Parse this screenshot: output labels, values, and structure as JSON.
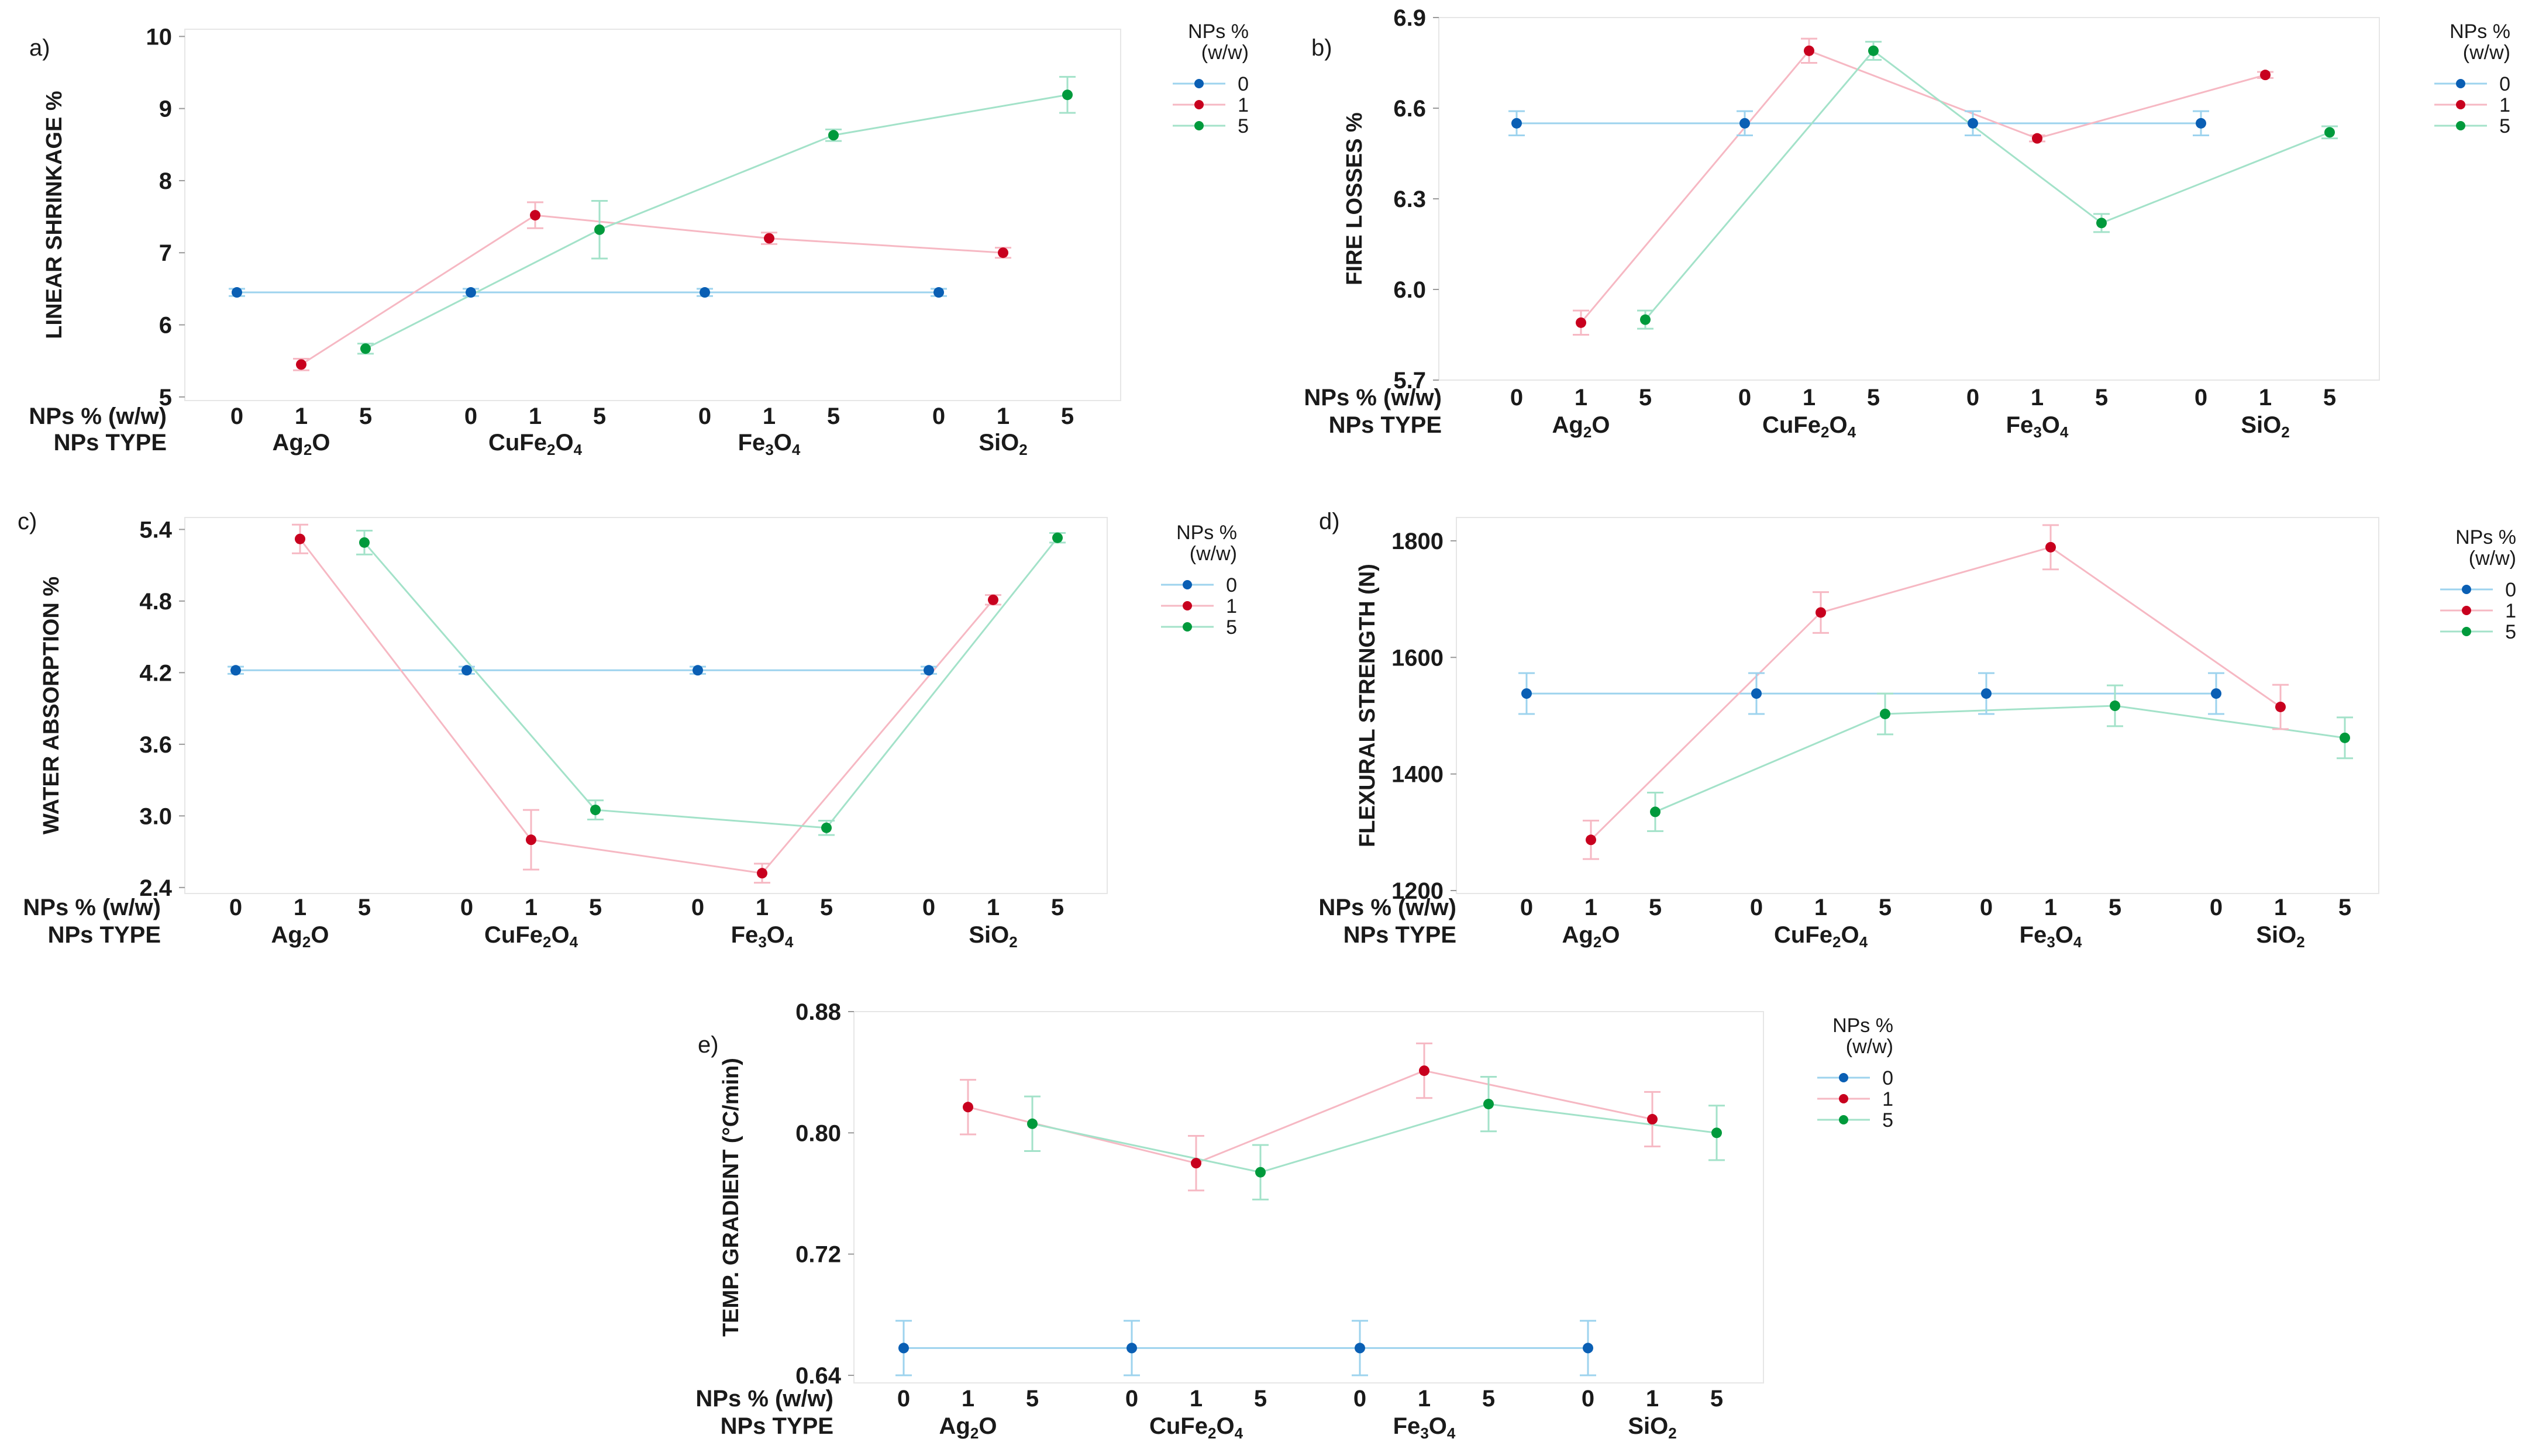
{
  "figure": {
    "nps_row_label": "NPs % (w/w)",
    "type_row_label": "NPs TYPE",
    "legend_title_line1": "NPs %",
    "legend_title_line2": "(w/w)",
    "series_colors": {
      "0": "#0a5fb4",
      "1": "#c8001e",
      "5": "#009a3c"
    },
    "line_colors": {
      "0": "#9dd3ee",
      "1": "#f6b8c3",
      "5": "#a3e2c9"
    },
    "nps_types": [
      {
        "base": "Ag",
        "sub1": "2",
        "mid": "O",
        "sub2": ""
      },
      {
        "base": "CuFe",
        "sub1": "2",
        "mid": "O",
        "sub2": "4"
      },
      {
        "base": "Fe",
        "sub1": "3",
        "mid": "O",
        "sub2": "4"
      },
      {
        "base": "SiO",
        "sub1": "2",
        "mid": "",
        "sub2": ""
      }
    ],
    "nps_levels": [
      "0",
      "1",
      "5"
    ]
  },
  "chart_data": [
    {
      "panel": "a)",
      "type": "line",
      "title": "",
      "ylabel": "LINEAR SHRINKAGE %",
      "ylim": [
        4.95,
        10.1
      ],
      "yticks": [
        5,
        6,
        7,
        8,
        9,
        10
      ],
      "categories": [
        "Ag2O",
        "CuFe2O4",
        "Fe3O4",
        "SiO2"
      ],
      "series": [
        {
          "name": "0",
          "values": [
            6.45,
            6.45,
            6.45,
            6.45
          ],
          "errors": [
            0.05,
            0.05,
            0.05,
            0.05
          ]
        },
        {
          "name": "1",
          "values": [
            5.45,
            7.52,
            7.2,
            7.0
          ],
          "errors": [
            0.08,
            0.18,
            0.08,
            0.07
          ]
        },
        {
          "name": "5",
          "values": [
            5.67,
            7.32,
            8.63,
            9.19
          ],
          "errors": [
            0.07,
            0.4,
            0.08,
            0.25
          ]
        }
      ]
    },
    {
      "panel": "b)",
      "type": "line",
      "title": "",
      "ylabel": "FIRE LOSSES %",
      "ylim": [
        5.7,
        6.9
      ],
      "yticks": [
        "5.7",
        "6.0",
        "6.3",
        "6.6",
        "6.9"
      ],
      "categories": [
        "Ag2O",
        "CuFe2O4",
        "Fe3O4",
        "SiO2"
      ],
      "series": [
        {
          "name": "0",
          "values": [
            6.55,
            6.55,
            6.55,
            6.55
          ],
          "errors": [
            0.04,
            0.04,
            0.04,
            0.04
          ]
        },
        {
          "name": "1",
          "values": [
            5.89,
            6.79,
            6.5,
            6.71
          ],
          "errors": [
            0.04,
            0.04,
            0.01,
            0.01
          ]
        },
        {
          "name": "5",
          "values": [
            5.9,
            6.79,
            6.22,
            6.52
          ],
          "errors": [
            0.03,
            0.03,
            0.03,
            0.02
          ]
        }
      ]
    },
    {
      "panel": "c)",
      "type": "line",
      "title": "",
      "ylabel": "WATER ABSORPTION %",
      "ylim": [
        2.35,
        5.5
      ],
      "yticks": [
        "2.4",
        "3.0",
        "3.6",
        "4.2",
        "4.8",
        "5.4"
      ],
      "categories": [
        "Ag2O",
        "CuFe2O4",
        "Fe3O4",
        "SiO2"
      ],
      "series": [
        {
          "name": "0",
          "values": [
            4.22,
            4.22,
            4.22,
            4.22
          ],
          "errors": [
            0.03,
            0.03,
            0.03,
            0.03
          ]
        },
        {
          "name": "1",
          "values": [
            5.32,
            2.8,
            2.52,
            4.81
          ],
          "errors": [
            0.12,
            0.25,
            0.08,
            0.04
          ]
        },
        {
          "name": "5",
          "values": [
            5.29,
            3.05,
            2.9,
            5.33
          ],
          "errors": [
            0.1,
            0.08,
            0.06,
            0.04
          ]
        }
      ]
    },
    {
      "panel": "d)",
      "type": "line",
      "title": "",
      "ylabel": "FLEXURAL STRENGTH (N)",
      "ylim": [
        1195,
        1840
      ],
      "yticks": [
        1200,
        1400,
        1600,
        1800
      ],
      "categories": [
        "Ag2O",
        "CuFe2O4",
        "Fe3O4",
        "SiO2"
      ],
      "series": [
        {
          "name": "0",
          "values": [
            1538,
            1538,
            1538,
            1538
          ],
          "errors": [
            35,
            35,
            35,
            35
          ]
        },
        {
          "name": "1",
          "values": [
            1287,
            1677,
            1789,
            1515
          ],
          "errors": [
            33,
            35,
            38,
            38
          ]
        },
        {
          "name": "5",
          "values": [
            1335,
            1503,
            1517,
            1462
          ],
          "errors": [
            33,
            35,
            35,
            35
          ]
        }
      ]
    },
    {
      "panel": "e)",
      "type": "line",
      "title": "",
      "ylabel": "TEMP. GRADIENT (°C/min)",
      "ylim": [
        0.635,
        0.88
      ],
      "yticks": [
        "0.64",
        "0.72",
        "0.80",
        "0.88"
      ],
      "categories": [
        "Ag2O",
        "CuFe2O4",
        "Fe3O4",
        "SiO2"
      ],
      "series": [
        {
          "name": "0",
          "values": [
            0.658,
            0.658,
            0.658,
            0.658
          ],
          "errors": [
            0.018,
            0.018,
            0.018,
            0.018
          ]
        },
        {
          "name": "1",
          "values": [
            0.817,
            0.78,
            0.841,
            0.809
          ],
          "errors": [
            0.018,
            0.018,
            0.018,
            0.018
          ]
        },
        {
          "name": "5",
          "values": [
            0.806,
            0.774,
            0.819,
            0.8
          ],
          "errors": [
            0.018,
            0.018,
            0.018,
            0.018
          ]
        }
      ]
    }
  ]
}
